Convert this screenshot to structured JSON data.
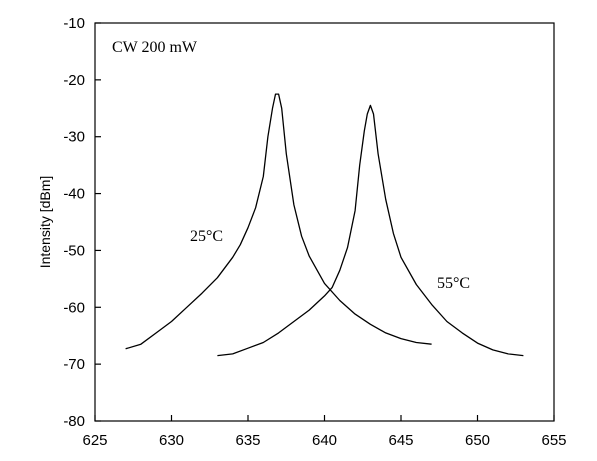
{
  "chart_data": {
    "type": "line",
    "title": "",
    "xlabel": "",
    "ylabel": "Intensity [dBm]",
    "xlim": [
      625,
      655
    ],
    "ylim": [
      -80,
      -10
    ],
    "xticks": [
      625,
      630,
      635,
      640,
      645,
      650,
      655
    ],
    "yticks": [
      -10,
      -20,
      -30,
      -40,
      -50,
      -60,
      -70,
      -80
    ],
    "grid": false,
    "annotations": [
      "CW 200 mW",
      "25°C",
      "55°C"
    ],
    "series": [
      {
        "name": "25°C",
        "x": [
          627,
          628,
          629,
          630,
          631,
          632,
          633,
          634,
          634.5,
          635,
          635.5,
          636,
          636.3,
          636.6,
          636.8,
          637,
          637.2,
          637.5,
          638,
          638.5,
          639,
          640,
          641,
          642,
          643,
          644,
          645,
          646,
          647
        ],
        "y": [
          -67.3,
          -66.5,
          -64.5,
          -62.5,
          -60,
          -57.5,
          -54.8,
          -51.2,
          -49,
          -46,
          -42.5,
          -37,
          -30,
          -25,
          -22.5,
          -22.5,
          -25,
          -33,
          -42,
          -47.5,
          -51,
          -55.8,
          -58.8,
          -61.2,
          -63,
          -64.5,
          -65.5,
          -66.2,
          -66.5
        ]
      },
      {
        "name": "55°C",
        "x": [
          633,
          634,
          635,
          636,
          637,
          638,
          639,
          640,
          640.5,
          641,
          641.5,
          642,
          642.3,
          642.6,
          642.8,
          643,
          643.2,
          643.5,
          644,
          644.5,
          645,
          646,
          647,
          648,
          649,
          650,
          651,
          652,
          653
        ],
        "y": [
          -68.5,
          -68.2,
          -67.2,
          -66.2,
          -64.5,
          -62.5,
          -60.5,
          -58,
          -56.5,
          -53.5,
          -49.5,
          -43,
          -35,
          -29,
          -26,
          -24.5,
          -26,
          -33,
          -41,
          -47,
          -51.2,
          -56,
          -59.5,
          -62.5,
          -64.5,
          -66.3,
          -67.5,
          -68.2,
          -68.5
        ]
      }
    ]
  }
}
